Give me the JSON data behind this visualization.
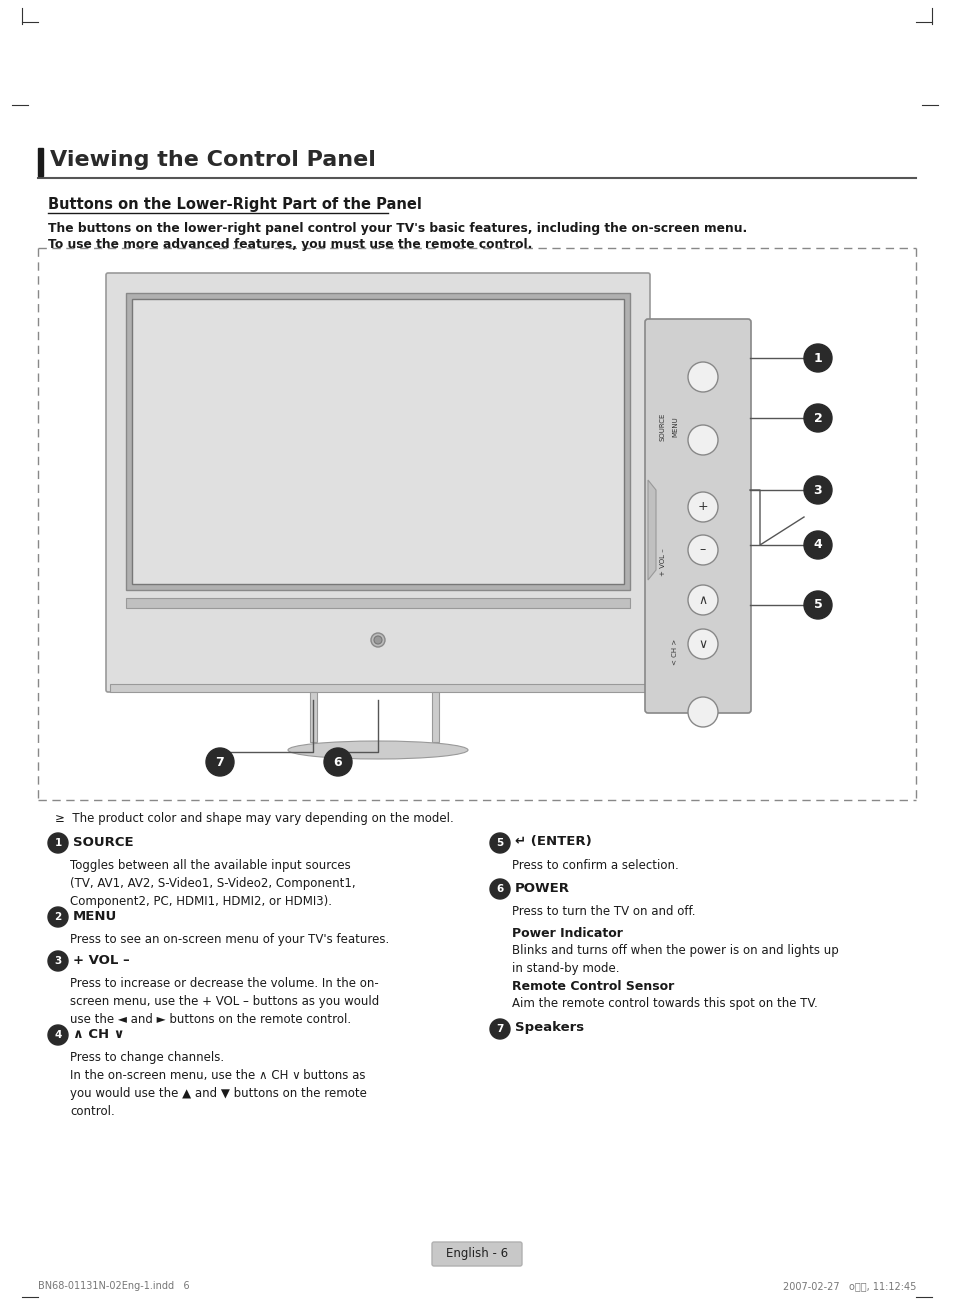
{
  "title": "Viewing the Control Panel",
  "subtitle": "Buttons on the Lower-Right Part of the Panel",
  "intro_line1": "The buttons on the lower-right panel control your TV's basic features, including the on-screen menu.",
  "intro_line2": "To use the more advanced features, you must use the remote control.",
  "note_text": "≥  The product color and shape may vary depending on the model.",
  "page_label": "English - 6",
  "footer_left": "BN68-01131N-02Eng-1.indd   6",
  "footer_right": "2007-02-27   o๊๊, 11:12:45",
  "bg_color": "#ffffff",
  "text_color": "#1a1a1a",
  "gray_color": "#aaaaaa",
  "dark_color": "#2a2a2a"
}
